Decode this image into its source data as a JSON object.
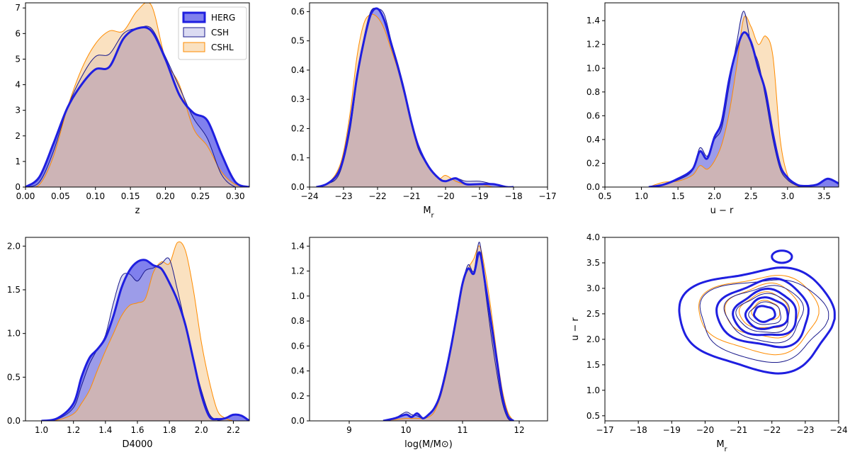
{
  "colors": {
    "HERG": "#1f1fe0",
    "CSH": "#1a1a8c",
    "CSHL": "#ff8c00",
    "fill_HERG": "#4a4ae6",
    "fill_CSH": "#b8b8e6",
    "fill_CSHL": "#f5c98c"
  },
  "legend": {
    "entries": [
      "HERG",
      "CSH",
      "CSHL"
    ]
  },
  "chart_data": [
    {
      "type": "area",
      "xlabel": "z",
      "ylabel": "",
      "xlim": [
        0.0,
        0.32
      ],
      "ylim": [
        0,
        7.2
      ],
      "xticks": [
        0.0,
        0.05,
        0.1,
        0.15,
        0.2,
        0.25,
        0.3
      ],
      "xtick_labels": [
        "0.00",
        "0.05",
        "0.10",
        "0.15",
        "0.20",
        "0.25",
        "0.30"
      ],
      "yticks": [
        0,
        1,
        2,
        3,
        4,
        5,
        6,
        7
      ],
      "ytick_labels": [
        "0",
        "1",
        "2",
        "3",
        "4",
        "5",
        "6",
        "7"
      ],
      "series": [
        {
          "name": "HERG",
          "x": [
            0.0,
            0.02,
            0.04,
            0.06,
            0.08,
            0.1,
            0.12,
            0.14,
            0.16,
            0.18,
            0.2,
            0.22,
            0.24,
            0.26,
            0.28,
            0.3,
            0.32
          ],
          "y": [
            0.0,
            0.4,
            1.7,
            3.1,
            4.0,
            4.6,
            4.7,
            5.8,
            6.2,
            6.1,
            5.0,
            3.6,
            2.9,
            2.6,
            1.3,
            0.2,
            0.0
          ]
        },
        {
          "name": "CSH",
          "x": [
            0.0,
            0.02,
            0.04,
            0.06,
            0.08,
            0.1,
            0.12,
            0.14,
            0.16,
            0.18,
            0.2,
            0.22,
            0.24,
            0.26,
            0.28,
            0.3,
            0.32
          ],
          "y": [
            0.0,
            0.2,
            1.4,
            3.1,
            4.3,
            5.1,
            5.2,
            6.0,
            6.2,
            6.2,
            5.1,
            3.9,
            2.7,
            1.9,
            0.5,
            0.0,
            0.0
          ]
        },
        {
          "name": "CSHL",
          "x": [
            0.0,
            0.02,
            0.04,
            0.06,
            0.08,
            0.1,
            0.12,
            0.14,
            0.16,
            0.18,
            0.2,
            0.22,
            0.24,
            0.26,
            0.28,
            0.3,
            0.32
          ],
          "y": [
            0.0,
            0.1,
            1.2,
            3.1,
            4.6,
            5.6,
            6.1,
            6.1,
            6.9,
            7.1,
            5.0,
            4.0,
            2.3,
            1.6,
            0.6,
            0.1,
            0.0
          ]
        }
      ]
    },
    {
      "type": "area",
      "xlabel": "M_r",
      "ylabel": "",
      "xlim": [
        -24,
        -17
      ],
      "ylim": [
        0,
        0.63
      ],
      "xticks": [
        -24,
        -23,
        -22,
        -21,
        -20,
        -19,
        -18,
        -17
      ],
      "xtick_labels": [
        "−24",
        "−23",
        "−22",
        "−21",
        "−20",
        "−19",
        "−18",
        "−17"
      ],
      "yticks": [
        0.0,
        0.1,
        0.2,
        0.3,
        0.4,
        0.5,
        0.6
      ],
      "ytick_labels": [
        "0.0",
        "0.1",
        "0.2",
        "0.3",
        "0.4",
        "0.5",
        "0.6"
      ],
      "series": [
        {
          "name": "HERG",
          "x": [
            -23.8,
            -23.5,
            -23.2,
            -23.0,
            -22.8,
            -22.6,
            -22.4,
            -22.2,
            -22.0,
            -21.8,
            -21.6,
            -21.4,
            -21.2,
            -21.0,
            -20.8,
            -20.5,
            -20.2,
            -20.0,
            -19.7,
            -19.4,
            -19.0,
            -18.6,
            -18.2,
            -18.0
          ],
          "y": [
            0.0,
            0.01,
            0.04,
            0.1,
            0.22,
            0.38,
            0.5,
            0.59,
            0.61,
            0.57,
            0.49,
            0.41,
            0.32,
            0.22,
            0.14,
            0.07,
            0.03,
            0.02,
            0.03,
            0.01,
            0.01,
            0.01,
            0.0,
            0.0
          ]
        },
        {
          "name": "CSH",
          "x": [
            -23.8,
            -23.5,
            -23.2,
            -23.0,
            -22.8,
            -22.6,
            -22.4,
            -22.2,
            -22.0,
            -21.8,
            -21.6,
            -21.4,
            -21.2,
            -21.0,
            -20.8,
            -20.5,
            -20.2,
            -20.0,
            -19.7,
            -19.4,
            -19.0,
            -18.6,
            -18.2,
            -18.0
          ],
          "y": [
            0.0,
            0.01,
            0.03,
            0.09,
            0.2,
            0.37,
            0.51,
            0.6,
            0.61,
            0.59,
            0.5,
            0.42,
            0.33,
            0.22,
            0.13,
            0.07,
            0.03,
            0.02,
            0.03,
            0.02,
            0.02,
            0.01,
            0.0,
            0.0
          ]
        },
        {
          "name": "CSHL",
          "x": [
            -23.8,
            -23.5,
            -23.2,
            -23.0,
            -22.8,
            -22.6,
            -22.4,
            -22.2,
            -22.0,
            -21.8,
            -21.6,
            -21.4,
            -21.2,
            -21.0,
            -20.8,
            -20.5,
            -20.2,
            -20.0,
            -19.7,
            -19.4,
            -19.0,
            -18.6,
            -18.2,
            -18.0
          ],
          "y": [
            0.0,
            0.01,
            0.05,
            0.12,
            0.26,
            0.45,
            0.56,
            0.59,
            0.58,
            0.54,
            0.47,
            0.4,
            0.31,
            0.21,
            0.13,
            0.07,
            0.03,
            0.04,
            0.02,
            0.01,
            0.01,
            0.0,
            0.0,
            0.0
          ]
        }
      ]
    },
    {
      "type": "area",
      "xlabel": "u − r",
      "ylabel": "",
      "xlim": [
        0.5,
        3.7
      ],
      "ylim": [
        0,
        1.55
      ],
      "xticks": [
        0.5,
        1.0,
        1.5,
        2.0,
        2.5,
        3.0,
        3.5
      ],
      "xtick_labels": [
        "0.5",
        "1.0",
        "1.5",
        "2.0",
        "2.5",
        "3.0",
        "3.5"
      ],
      "yticks": [
        0.0,
        0.2,
        0.4,
        0.6,
        0.8,
        1.0,
        1.2,
        1.4
      ],
      "ytick_labels": [
        "0.0",
        "0.2",
        "0.4",
        "0.6",
        "0.8",
        "1.0",
        "1.2",
        "1.4"
      ],
      "series": [
        {
          "name": "HERG",
          "x": [
            1.1,
            1.3,
            1.5,
            1.7,
            1.8,
            1.9,
            2.0,
            2.1,
            2.2,
            2.3,
            2.4,
            2.5,
            2.6,
            2.7,
            2.8,
            2.9,
            3.0,
            3.1,
            3.2,
            3.4,
            3.55,
            3.7
          ],
          "y": [
            0.0,
            0.02,
            0.07,
            0.15,
            0.3,
            0.24,
            0.42,
            0.55,
            0.9,
            1.15,
            1.3,
            1.22,
            1.0,
            0.8,
            0.45,
            0.18,
            0.08,
            0.03,
            0.01,
            0.02,
            0.07,
            0.03
          ]
        },
        {
          "name": "CSH",
          "x": [
            1.1,
            1.3,
            1.5,
            1.7,
            1.8,
            1.9,
            2.0,
            2.1,
            2.2,
            2.3,
            2.4,
            2.5,
            2.6,
            2.7,
            2.8,
            2.9,
            3.0,
            3.1,
            3.2,
            3.4,
            3.55,
            3.7
          ],
          "y": [
            0.0,
            0.02,
            0.06,
            0.14,
            0.33,
            0.26,
            0.4,
            0.5,
            0.85,
            1.2,
            1.48,
            1.2,
            1.05,
            0.75,
            0.4,
            0.15,
            0.06,
            0.02,
            0.0,
            0.0,
            0.0,
            0.0
          ]
        },
        {
          "name": "CSHL",
          "x": [
            1.1,
            1.3,
            1.5,
            1.7,
            1.8,
            1.9,
            2.0,
            2.1,
            2.2,
            2.3,
            2.4,
            2.5,
            2.6,
            2.7,
            2.8,
            2.9,
            3.0,
            3.1,
            3.2,
            3.4,
            3.55,
            3.7
          ],
          "y": [
            0.0,
            0.04,
            0.05,
            0.1,
            0.18,
            0.15,
            0.22,
            0.36,
            0.62,
            1.0,
            1.42,
            1.35,
            1.2,
            1.27,
            1.1,
            0.4,
            0.1,
            0.02,
            0.0,
            0.0,
            0.0,
            0.0
          ]
        }
      ]
    },
    {
      "type": "area",
      "xlabel": "D4000",
      "ylabel": "",
      "xlim": [
        0.9,
        2.3
      ],
      "ylim": [
        0,
        2.1
      ],
      "xticks": [
        1.0,
        1.2,
        1.4,
        1.6,
        1.8,
        2.0,
        2.2
      ],
      "xtick_labels": [
        "1.0",
        "1.2",
        "1.4",
        "1.6",
        "1.8",
        "2.0",
        "2.2"
      ],
      "yticks": [
        0.0,
        0.5,
        1.0,
        1.5,
        2.0
      ],
      "ytick_labels": [
        "0.0",
        "0.5",
        "1.0",
        "1.5",
        "2.0"
      ],
      "series": [
        {
          "name": "HERG",
          "x": [
            1.0,
            1.1,
            1.2,
            1.25,
            1.3,
            1.35,
            1.4,
            1.45,
            1.5,
            1.55,
            1.6,
            1.65,
            1.7,
            1.75,
            1.8,
            1.85,
            1.9,
            1.95,
            2.0,
            2.05,
            2.1,
            2.15,
            2.2,
            2.25,
            2.3
          ],
          "y": [
            0.0,
            0.03,
            0.2,
            0.5,
            0.72,
            0.82,
            0.95,
            1.2,
            1.52,
            1.72,
            1.82,
            1.84,
            1.78,
            1.74,
            1.58,
            1.38,
            1.1,
            0.7,
            0.3,
            0.05,
            0.02,
            0.03,
            0.07,
            0.06,
            0.0
          ]
        },
        {
          "name": "CSH",
          "x": [
            1.0,
            1.1,
            1.2,
            1.25,
            1.3,
            1.35,
            1.4,
            1.45,
            1.5,
            1.55,
            1.6,
            1.65,
            1.7,
            1.75,
            1.8,
            1.85,
            1.9,
            1.95,
            2.0,
            2.05,
            2.1,
            2.15,
            2.2,
            2.25,
            2.3
          ],
          "y": [
            0.0,
            0.02,
            0.15,
            0.4,
            0.65,
            0.82,
            0.98,
            1.35,
            1.65,
            1.68,
            1.6,
            1.72,
            1.75,
            1.8,
            1.85,
            1.5,
            1.1,
            0.7,
            0.35,
            0.08,
            0.01,
            0.0,
            0.0,
            0.0,
            0.0
          ]
        },
        {
          "name": "CSHL",
          "x": [
            1.0,
            1.1,
            1.2,
            1.25,
            1.3,
            1.35,
            1.4,
            1.45,
            1.5,
            1.55,
            1.6,
            1.65,
            1.7,
            1.75,
            1.8,
            1.85,
            1.9,
            1.95,
            2.0,
            2.05,
            2.1,
            2.15,
            2.2,
            2.25,
            2.3
          ],
          "y": [
            0.0,
            0.01,
            0.08,
            0.2,
            0.35,
            0.58,
            0.8,
            1.0,
            1.2,
            1.32,
            1.35,
            1.4,
            1.7,
            1.82,
            1.8,
            2.04,
            1.95,
            1.5,
            0.9,
            0.45,
            0.12,
            0.03,
            0.0,
            0.0,
            0.0
          ]
        }
      ]
    },
    {
      "type": "area",
      "xlabel": "log(M/M⊙)",
      "ylabel": "",
      "xlim": [
        8.3,
        12.5
      ],
      "ylim": [
        0,
        1.47
      ],
      "xticks": [
        9,
        10,
        11,
        12
      ],
      "xtick_labels": [
        "9",
        "10",
        "11",
        "12"
      ],
      "yticks": [
        0.0,
        0.2,
        0.4,
        0.6,
        0.8,
        1.0,
        1.2,
        1.4
      ],
      "ytick_labels": [
        "0.0",
        "0.2",
        "0.4",
        "0.6",
        "0.8",
        "1.0",
        "1.2",
        "1.4"
      ],
      "series": [
        {
          "name": "HERG",
          "x": [
            9.6,
            9.8,
            10.0,
            10.1,
            10.2,
            10.3,
            10.4,
            10.5,
            10.6,
            10.7,
            10.8,
            10.9,
            11.0,
            11.1,
            11.2,
            11.3,
            11.4,
            11.5,
            11.6,
            11.7,
            11.8,
            11.9
          ],
          "y": [
            0.0,
            0.02,
            0.05,
            0.03,
            0.06,
            0.02,
            0.05,
            0.1,
            0.2,
            0.38,
            0.6,
            0.85,
            1.1,
            1.22,
            1.18,
            1.35,
            1.1,
            0.8,
            0.5,
            0.2,
            0.04,
            0.0
          ]
        },
        {
          "name": "CSH",
          "x": [
            9.6,
            9.8,
            10.0,
            10.1,
            10.2,
            10.3,
            10.4,
            10.5,
            10.6,
            10.7,
            10.8,
            10.9,
            11.0,
            11.1,
            11.2,
            11.3,
            11.4,
            11.5,
            11.6,
            11.7,
            11.8,
            11.9
          ],
          "y": [
            0.0,
            0.02,
            0.07,
            0.05,
            0.04,
            0.02,
            0.05,
            0.1,
            0.22,
            0.4,
            0.62,
            0.85,
            1.1,
            1.25,
            1.2,
            1.43,
            1.05,
            0.7,
            0.4,
            0.15,
            0.02,
            0.0
          ]
        },
        {
          "name": "CSHL",
          "x": [
            9.6,
            9.8,
            10.0,
            10.1,
            10.2,
            10.3,
            10.4,
            10.5,
            10.6,
            10.7,
            10.8,
            10.9,
            11.0,
            11.1,
            11.2,
            11.3,
            11.4,
            11.5,
            11.6,
            11.7,
            11.8,
            11.9
          ],
          "y": [
            0.0,
            0.01,
            0.02,
            0.02,
            0.02,
            0.02,
            0.03,
            0.07,
            0.18,
            0.35,
            0.58,
            0.82,
            1.08,
            1.22,
            1.3,
            1.4,
            1.2,
            0.9,
            0.55,
            0.25,
            0.07,
            0.0
          ]
        }
      ]
    },
    {
      "type": "contour",
      "xlabel": "M_r",
      "ylabel": "u − r",
      "xlim": [
        -17,
        -24
      ],
      "ylim": [
        0.4,
        4.0
      ],
      "xticks": [
        -17,
        -18,
        -19,
        -20,
        -21,
        -22,
        -23,
        -24
      ],
      "xtick_labels": [
        "−17",
        "−18",
        "−19",
        "−20",
        "−21",
        "−22",
        "−23",
        "−24"
      ],
      "yticks": [
        0.5,
        1.0,
        1.5,
        2.0,
        2.5,
        3.0,
        3.5,
        4.0
      ],
      "ytick_labels": [
        "0.5",
        "1.0",
        "1.5",
        "2.0",
        "2.5",
        "3.0",
        "3.5",
        "4.0"
      ],
      "center": {
        "x": -21.9,
        "y": 2.45
      },
      "series": [
        {
          "name": "HERG",
          "levels": [
            {
              "rx": 2.2,
              "ry": 1.0,
              "dx": 0.1,
              "dy": -0.05
            },
            {
              "rx": 1.3,
              "ry": 0.65,
              "dx": 0.0,
              "dy": 0.05
            },
            {
              "rx": 0.9,
              "ry": 0.45,
              "dx": 0.0,
              "dy": 0.05
            },
            {
              "rx": 0.6,
              "ry": 0.3,
              "dx": 0.0,
              "dy": 0.05
            },
            {
              "rx": 0.3,
              "ry": 0.15,
              "dx": 0.1,
              "dy": 0.05
            }
          ],
          "islands": [
            {
              "x": -22.3,
              "y": 3.62,
              "rx": 0.3,
              "ry": 0.12
            }
          ]
        },
        {
          "name": "CSH",
          "levels": [
            {
              "rx": 1.8,
              "ry": 0.8,
              "dx": 0.0,
              "dy": -0.05
            },
            {
              "rx": 1.1,
              "ry": 0.55,
              "dx": 0.0,
              "dy": 0.05
            },
            {
              "rx": 0.75,
              "ry": 0.38,
              "dx": 0.05,
              "dy": 0.05
            },
            {
              "rx": 0.45,
              "ry": 0.22,
              "dx": 0.05,
              "dy": 0.05
            }
          ],
          "islands": []
        },
        {
          "name": "CSHL",
          "levels": [
            {
              "rx": 1.7,
              "ry": 0.75,
              "dx": 0.1,
              "dy": 0.05
            },
            {
              "rx": 1.05,
              "ry": 0.52,
              "dx": 0.05,
              "dy": 0.1
            },
            {
              "rx": 0.7,
              "ry": 0.35,
              "dx": 0.05,
              "dy": 0.1
            },
            {
              "rx": 0.4,
              "ry": 0.2,
              "dx": 0.05,
              "dy": 0.1
            }
          ],
          "islands": []
        }
      ]
    }
  ]
}
